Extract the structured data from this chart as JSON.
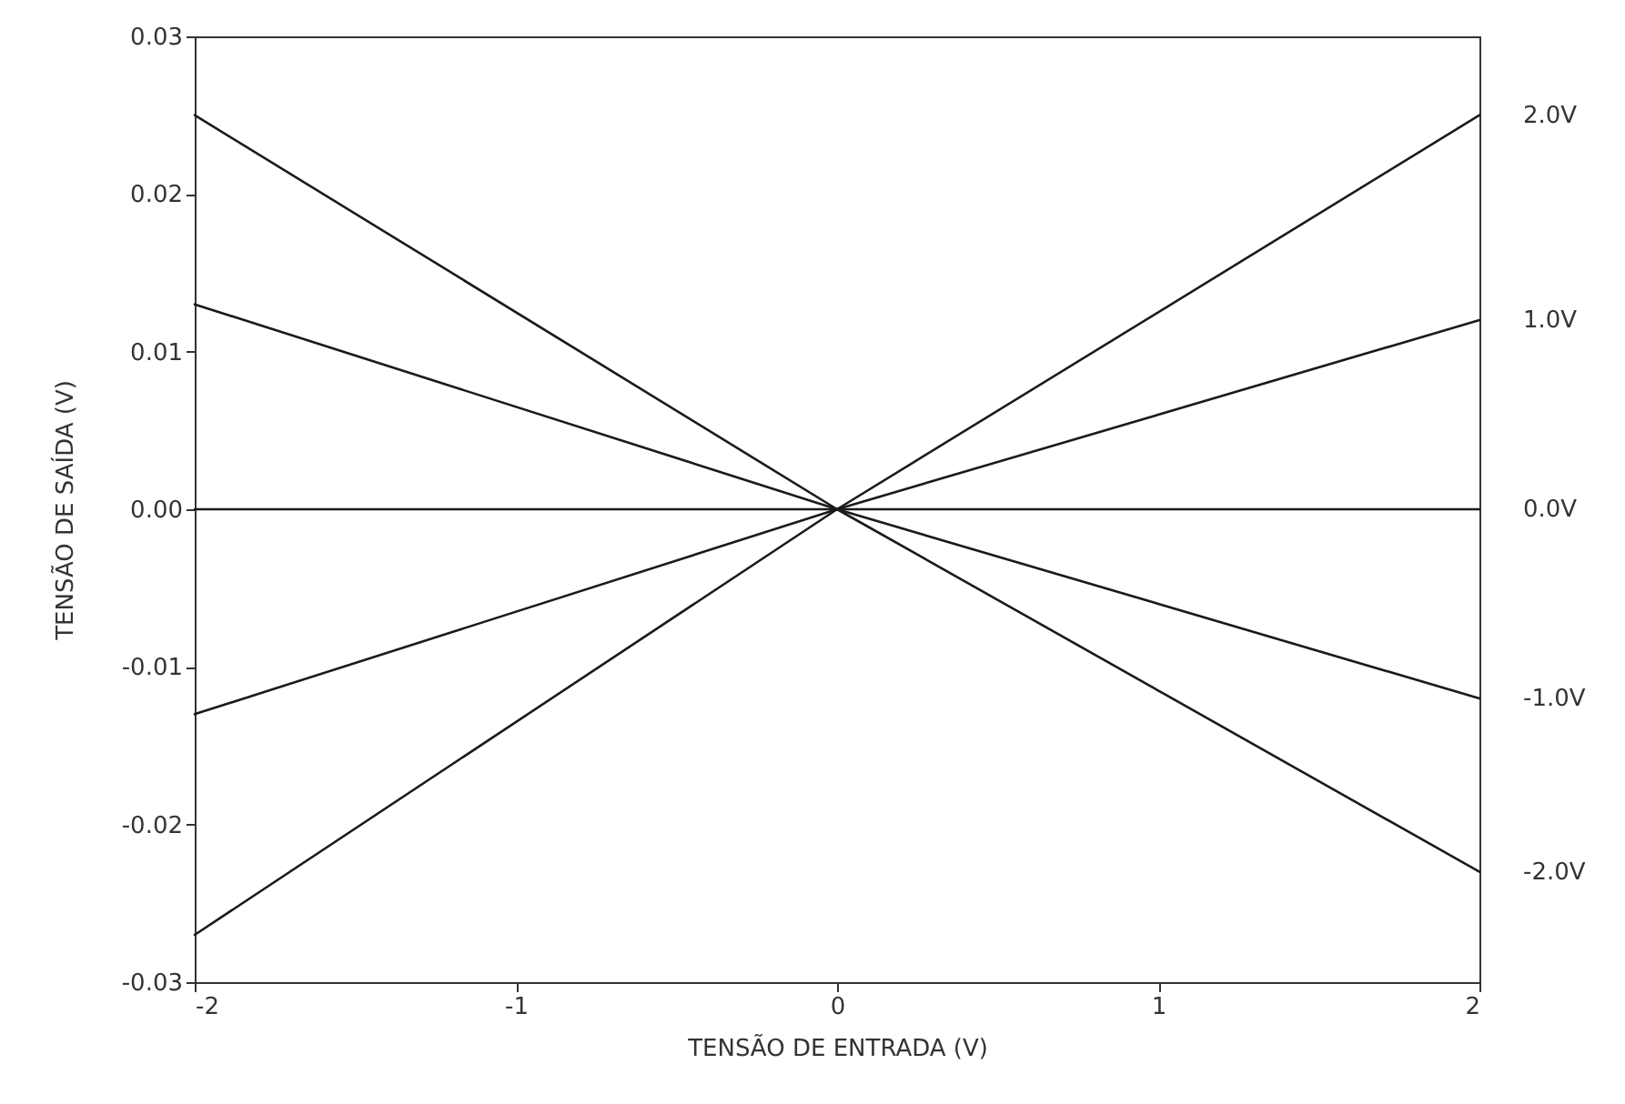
{
  "chart_data": {
    "type": "line",
    "xlabel": "TENSÃO DE ENTRADA (V)",
    "ylabel": "TENSÃO DE SAÍDA (V)",
    "x": [
      -2,
      0,
      2
    ],
    "series": [
      {
        "name": "2.0V",
        "color": "#1a1a1a",
        "values": [
          -0.027,
          0,
          0.025
        ]
      },
      {
        "name": "1.0V",
        "color": "#1a1a1a",
        "values": [
          -0.013,
          0,
          0.012
        ]
      },
      {
        "name": "0.0V",
        "color": "#1a1a1a",
        "values": [
          0,
          0,
          0
        ]
      },
      {
        "name": "-1.0V",
        "color": "#1a1a1a",
        "values": [
          0.013,
          0,
          -0.012
        ]
      },
      {
        "name": "-2.0V",
        "color": "#1a1a1a",
        "values": [
          0.025,
          0,
          -0.023
        ]
      }
    ],
    "xlim": [
      -2,
      2
    ],
    "ylim": [
      -0.03,
      0.03
    ],
    "xticks": [
      -2,
      -1,
      0,
      1,
      2
    ],
    "yticks": [
      -0.03,
      -0.02,
      -0.01,
      {
        "value": 0,
        "label": "0.00"
      },
      0.01,
      0.02,
      0.03
    ],
    "grid": false,
    "marker": "none",
    "line_style": "solid"
  }
}
